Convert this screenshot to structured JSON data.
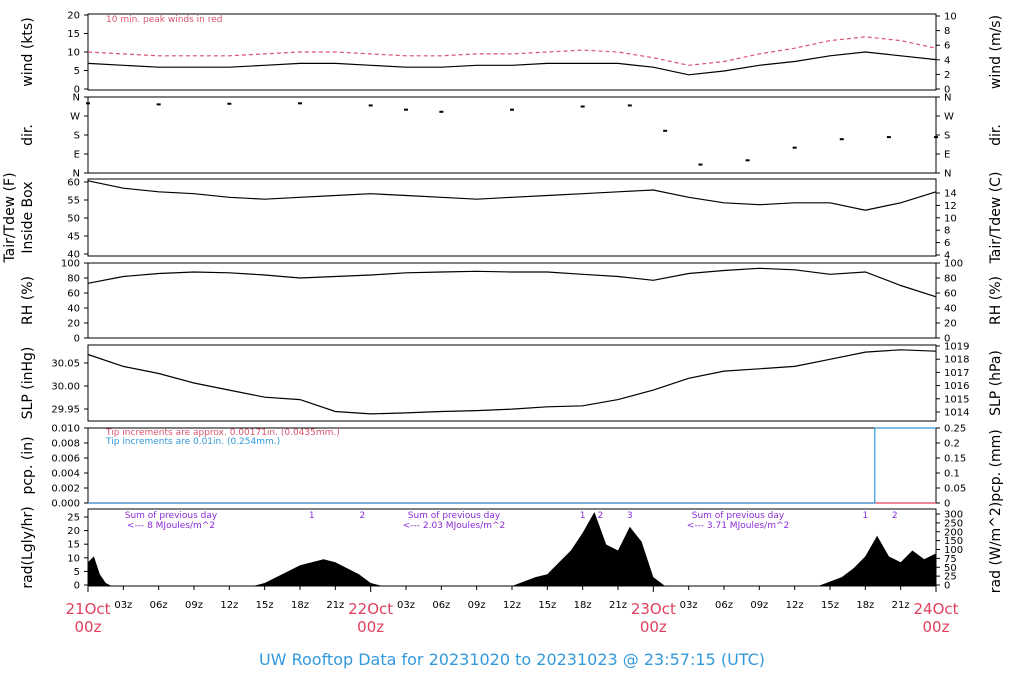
{
  "footer": {
    "title": "UW Rooftop Data for 20231020  to  20231023 @ 23:57:15  (UTC)"
  },
  "time_axis": {
    "days": [
      {
        "date": "21Oct",
        "hour": "00z",
        "t": 0
      },
      {
        "date": "22Oct",
        "hour": "00z",
        "t": 24
      },
      {
        "date": "23Oct",
        "hour": "00z",
        "t": 48
      },
      {
        "date": "24Oct",
        "hour": "00z",
        "t": 72
      }
    ],
    "hour_ticks": [
      "03z",
      "06z",
      "09z",
      "12z",
      "15z",
      "18z",
      "21z"
    ],
    "range_hours": [
      0,
      72
    ]
  },
  "panels": {
    "wind": {
      "left_label": "wind (kts)",
      "right_label": "wind (m/s)",
      "note": "10 min. peak winds in red",
      "left_ticks": [
        "0",
        "5",
        "10",
        "15",
        "20"
      ],
      "right_ticks": [
        "0",
        "2",
        "4",
        "6",
        "8",
        "10"
      ]
    },
    "dir": {
      "left_label": "dir.",
      "right_label": "dir.",
      "left_ticks": [
        "N",
        "E",
        "S",
        "W",
        "N"
      ],
      "right_ticks": [
        "N",
        "E",
        "S",
        "W",
        "N"
      ]
    },
    "temp": {
      "left_label": "Tair/Tdew (F)",
      "left_label2": "Inside Box",
      "right_label": "Tair/Tdew (C)",
      "left_ticks": [
        "40",
        "45",
        "50",
        "55",
        "60"
      ],
      "right_ticks": [
        "4",
        "6",
        "8",
        "10",
        "12",
        "14"
      ]
    },
    "rh": {
      "left_label": "RH (%)",
      "right_label": "RH (%)",
      "left_ticks": [
        "0",
        "20",
        "40",
        "60",
        "80",
        "100"
      ],
      "right_ticks": [
        "0",
        "20",
        "40",
        "60",
        "80",
        "100"
      ]
    },
    "slp": {
      "left_label": "SLP (inHg)",
      "right_label": "SLP (hPa)",
      "left_ticks": [
        "29.95",
        "30.00",
        "30.05"
      ],
      "right_ticks": [
        "1014",
        "1015",
        "1016",
        "1017",
        "1018",
        "1019"
      ]
    },
    "pcp": {
      "left_label": "pcp. (in)",
      "right_label": "pcp. (mm)",
      "note_red": "Tip increments are approx. 0.00171in. (0.0435mm.)",
      "note_blue": "Tip increments are 0.01in. (0.254mm.)",
      "left_ticks": [
        "0.000",
        "0.002",
        "0.004",
        "0.006",
        "0.008",
        "0.010"
      ],
      "right_ticks": [
        "0",
        "0.05",
        "0.1",
        "0.15",
        "0.2",
        "0.25"
      ]
    },
    "rad": {
      "left_label": "rad(Lgly/hr)",
      "right_label": "rad (W/m^2)",
      "left_ticks": [
        "0",
        "5",
        "10",
        "15",
        "20",
        "25"
      ],
      "right_ticks": [
        "0",
        "25",
        "50",
        "75",
        "100",
        "150",
        "200",
        "250",
        "300"
      ],
      "daily_notes": [
        {
          "line1": "Sum of previous day",
          "line2": "<--- 8 MJoules/m^2"
        },
        {
          "line1": "Sum of previous day",
          "line2": "<--- 2.03 MJoules/m^2"
        },
        {
          "line1": "Sum of previous day",
          "line2": "<--- 3.71 MJoules/m^2"
        }
      ],
      "peak_markers": [
        {
          "label": "1",
          "t": 19
        },
        {
          "label": "2",
          "t": 23.3
        },
        {
          "label": "1",
          "t": 42
        },
        {
          "label": "2",
          "t": 43.5
        },
        {
          "label": "3",
          "t": 46
        },
        {
          "label": "1",
          "t": 66
        },
        {
          "label": "2",
          "t": 68.5
        }
      ]
    }
  },
  "chart_data": [
    {
      "type": "line",
      "title": "wind",
      "xlabel": "",
      "ylabel": "wind (kts)",
      "ylim": [
        0,
        20
      ],
      "series": [
        {
          "name": "wind",
          "color": "#000000",
          "x": [
            0,
            3,
            6,
            9,
            12,
            15,
            18,
            21,
            24,
            27,
            30,
            33,
            36,
            39,
            42,
            45,
            48,
            51,
            54,
            57,
            60,
            63,
            66,
            69,
            72
          ],
          "values": [
            7,
            6.5,
            6,
            6,
            6,
            6.5,
            7,
            7,
            6.5,
            6,
            6,
            6.5,
            6.5,
            7,
            7,
            7,
            6,
            4,
            5,
            6.5,
            7.5,
            9,
            10,
            9,
            8
          ]
        },
        {
          "name": "10 min. peak winds in red",
          "color": "#d9546e",
          "x": [
            0,
            3,
            6,
            9,
            12,
            15,
            18,
            21,
            24,
            27,
            30,
            33,
            36,
            39,
            42,
            45,
            48,
            51,
            54,
            57,
            60,
            63,
            66,
            69,
            72
          ],
          "values": [
            10,
            9.5,
            9,
            9,
            9,
            9.5,
            10,
            10,
            9.5,
            9,
            9,
            9.5,
            9.5,
            10,
            10.5,
            10,
            8.5,
            6.5,
            7.5,
            9.5,
            11,
            13,
            14,
            13,
            11
          ]
        }
      ]
    },
    {
      "type": "scatter",
      "title": "dir.",
      "xlabel": "",
      "ylabel": "dir.",
      "ylim": [
        0,
        360
      ],
      "series": [
        {
          "name": "dir.",
          "color": "#000000",
          "x": [
            0,
            6,
            12,
            18,
            24,
            27,
            30,
            36,
            42,
            46,
            49,
            52,
            56,
            60,
            64,
            68,
            72
          ],
          "values": [
            330,
            325,
            328,
            330,
            320,
            300,
            290,
            300,
            315,
            320,
            200,
            40,
            60,
            120,
            160,
            170,
            170
          ]
        }
      ]
    },
    {
      "type": "line",
      "title": "Tair/Tdew",
      "xlabel": "",
      "ylabel": "Tair/Tdew (F)",
      "ylim": [
        39,
        60
      ],
      "series": [
        {
          "name": "Tair",
          "color": "#000000",
          "x": [
            0,
            3,
            6,
            9,
            12,
            15,
            18,
            21,
            24,
            27,
            30,
            33,
            36,
            39,
            42,
            45,
            48,
            51,
            54,
            57,
            60,
            63,
            66,
            69,
            72
          ],
          "values": [
            59.5,
            57.5,
            56.5,
            56,
            55,
            54.5,
            55,
            55.5,
            56,
            55.5,
            55,
            54.5,
            55,
            55.5,
            56,
            56.5,
            57,
            55,
            53.5,
            53,
            53.5,
            53.5,
            51.5,
            53.5,
            56.5
          ]
        }
      ]
    },
    {
      "type": "line",
      "title": "RH",
      "xlabel": "",
      "ylabel": "RH (%)",
      "ylim": [
        0,
        100
      ],
      "series": [
        {
          "name": "RH",
          "color": "#000000",
          "x": [
            0,
            3,
            6,
            9,
            12,
            15,
            18,
            21,
            24,
            27,
            30,
            33,
            36,
            39,
            42,
            45,
            48,
            51,
            54,
            57,
            60,
            63,
            66,
            69,
            72
          ],
          "values": [
            73,
            82,
            86,
            88,
            87,
            84,
            80,
            82,
            84,
            87,
            88,
            89,
            88,
            88,
            85,
            82,
            77,
            86,
            90,
            93,
            91,
            85,
            88,
            70,
            55
          ]
        }
      ]
    },
    {
      "type": "line",
      "title": "SLP",
      "xlabel": "",
      "ylabel": "SLP (inHg)",
      "ylim": [
        29.925,
        30.085
      ],
      "series": [
        {
          "name": "SLP",
          "color": "#000000",
          "x": [
            0,
            3,
            6,
            9,
            12,
            15,
            18,
            21,
            24,
            27,
            30,
            33,
            36,
            39,
            42,
            45,
            48,
            51,
            54,
            57,
            60,
            63,
            66,
            69,
            72
          ],
          "values": [
            30.065,
            30.04,
            30.025,
            30.005,
            29.99,
            29.975,
            29.97,
            29.945,
            29.94,
            29.942,
            29.945,
            29.947,
            29.95,
            29.955,
            29.957,
            29.97,
            29.99,
            30.015,
            30.03,
            30.035,
            30.04,
            30.055,
            30.07,
            30.075,
            30.072
          ]
        }
      ]
    },
    {
      "type": "line",
      "title": "pcp.",
      "xlabel": "",
      "ylabel": "pcp. (in)",
      "ylim": [
        0,
        0.01
      ],
      "series": [
        {
          "name": "pcp. tips 0.00171in",
          "color": "#e04060",
          "x": [
            0,
            72
          ],
          "values": [
            0,
            0
          ]
        },
        {
          "name": "pcp. tips 0.01in",
          "color": "#3399dd",
          "x": [
            0,
            66.8,
            66.8,
            72
          ],
          "values": [
            0,
            0,
            0.01,
            0.01
          ]
        }
      ]
    },
    {
      "type": "area",
      "title": "rad",
      "xlabel": "",
      "ylabel": "rad(Lgly/hr)",
      "ylim": [
        0,
        26
      ],
      "series": [
        {
          "name": "rad",
          "color": "#000000",
          "x": [
            0,
            0.5,
            1,
            1.5,
            2,
            14,
            15,
            16,
            17,
            18,
            19,
            20,
            21,
            22,
            23,
            24,
            25,
            36,
            38,
            39,
            40,
            41,
            42,
            43,
            44,
            45,
            46,
            47,
            48,
            49,
            62,
            64,
            65,
            66,
            67,
            68,
            69,
            70,
            71,
            72
          ],
          "values": [
            8,
            10,
            4,
            1,
            0,
            0,
            1,
            3,
            5,
            7,
            8,
            9,
            8,
            6,
            4,
            1,
            0,
            0,
            3,
            4,
            8,
            12,
            18,
            25,
            14,
            12,
            20,
            15,
            3,
            0,
            0,
            3,
            6,
            10,
            17,
            10,
            8,
            12,
            9,
            11
          ]
        }
      ]
    }
  ]
}
